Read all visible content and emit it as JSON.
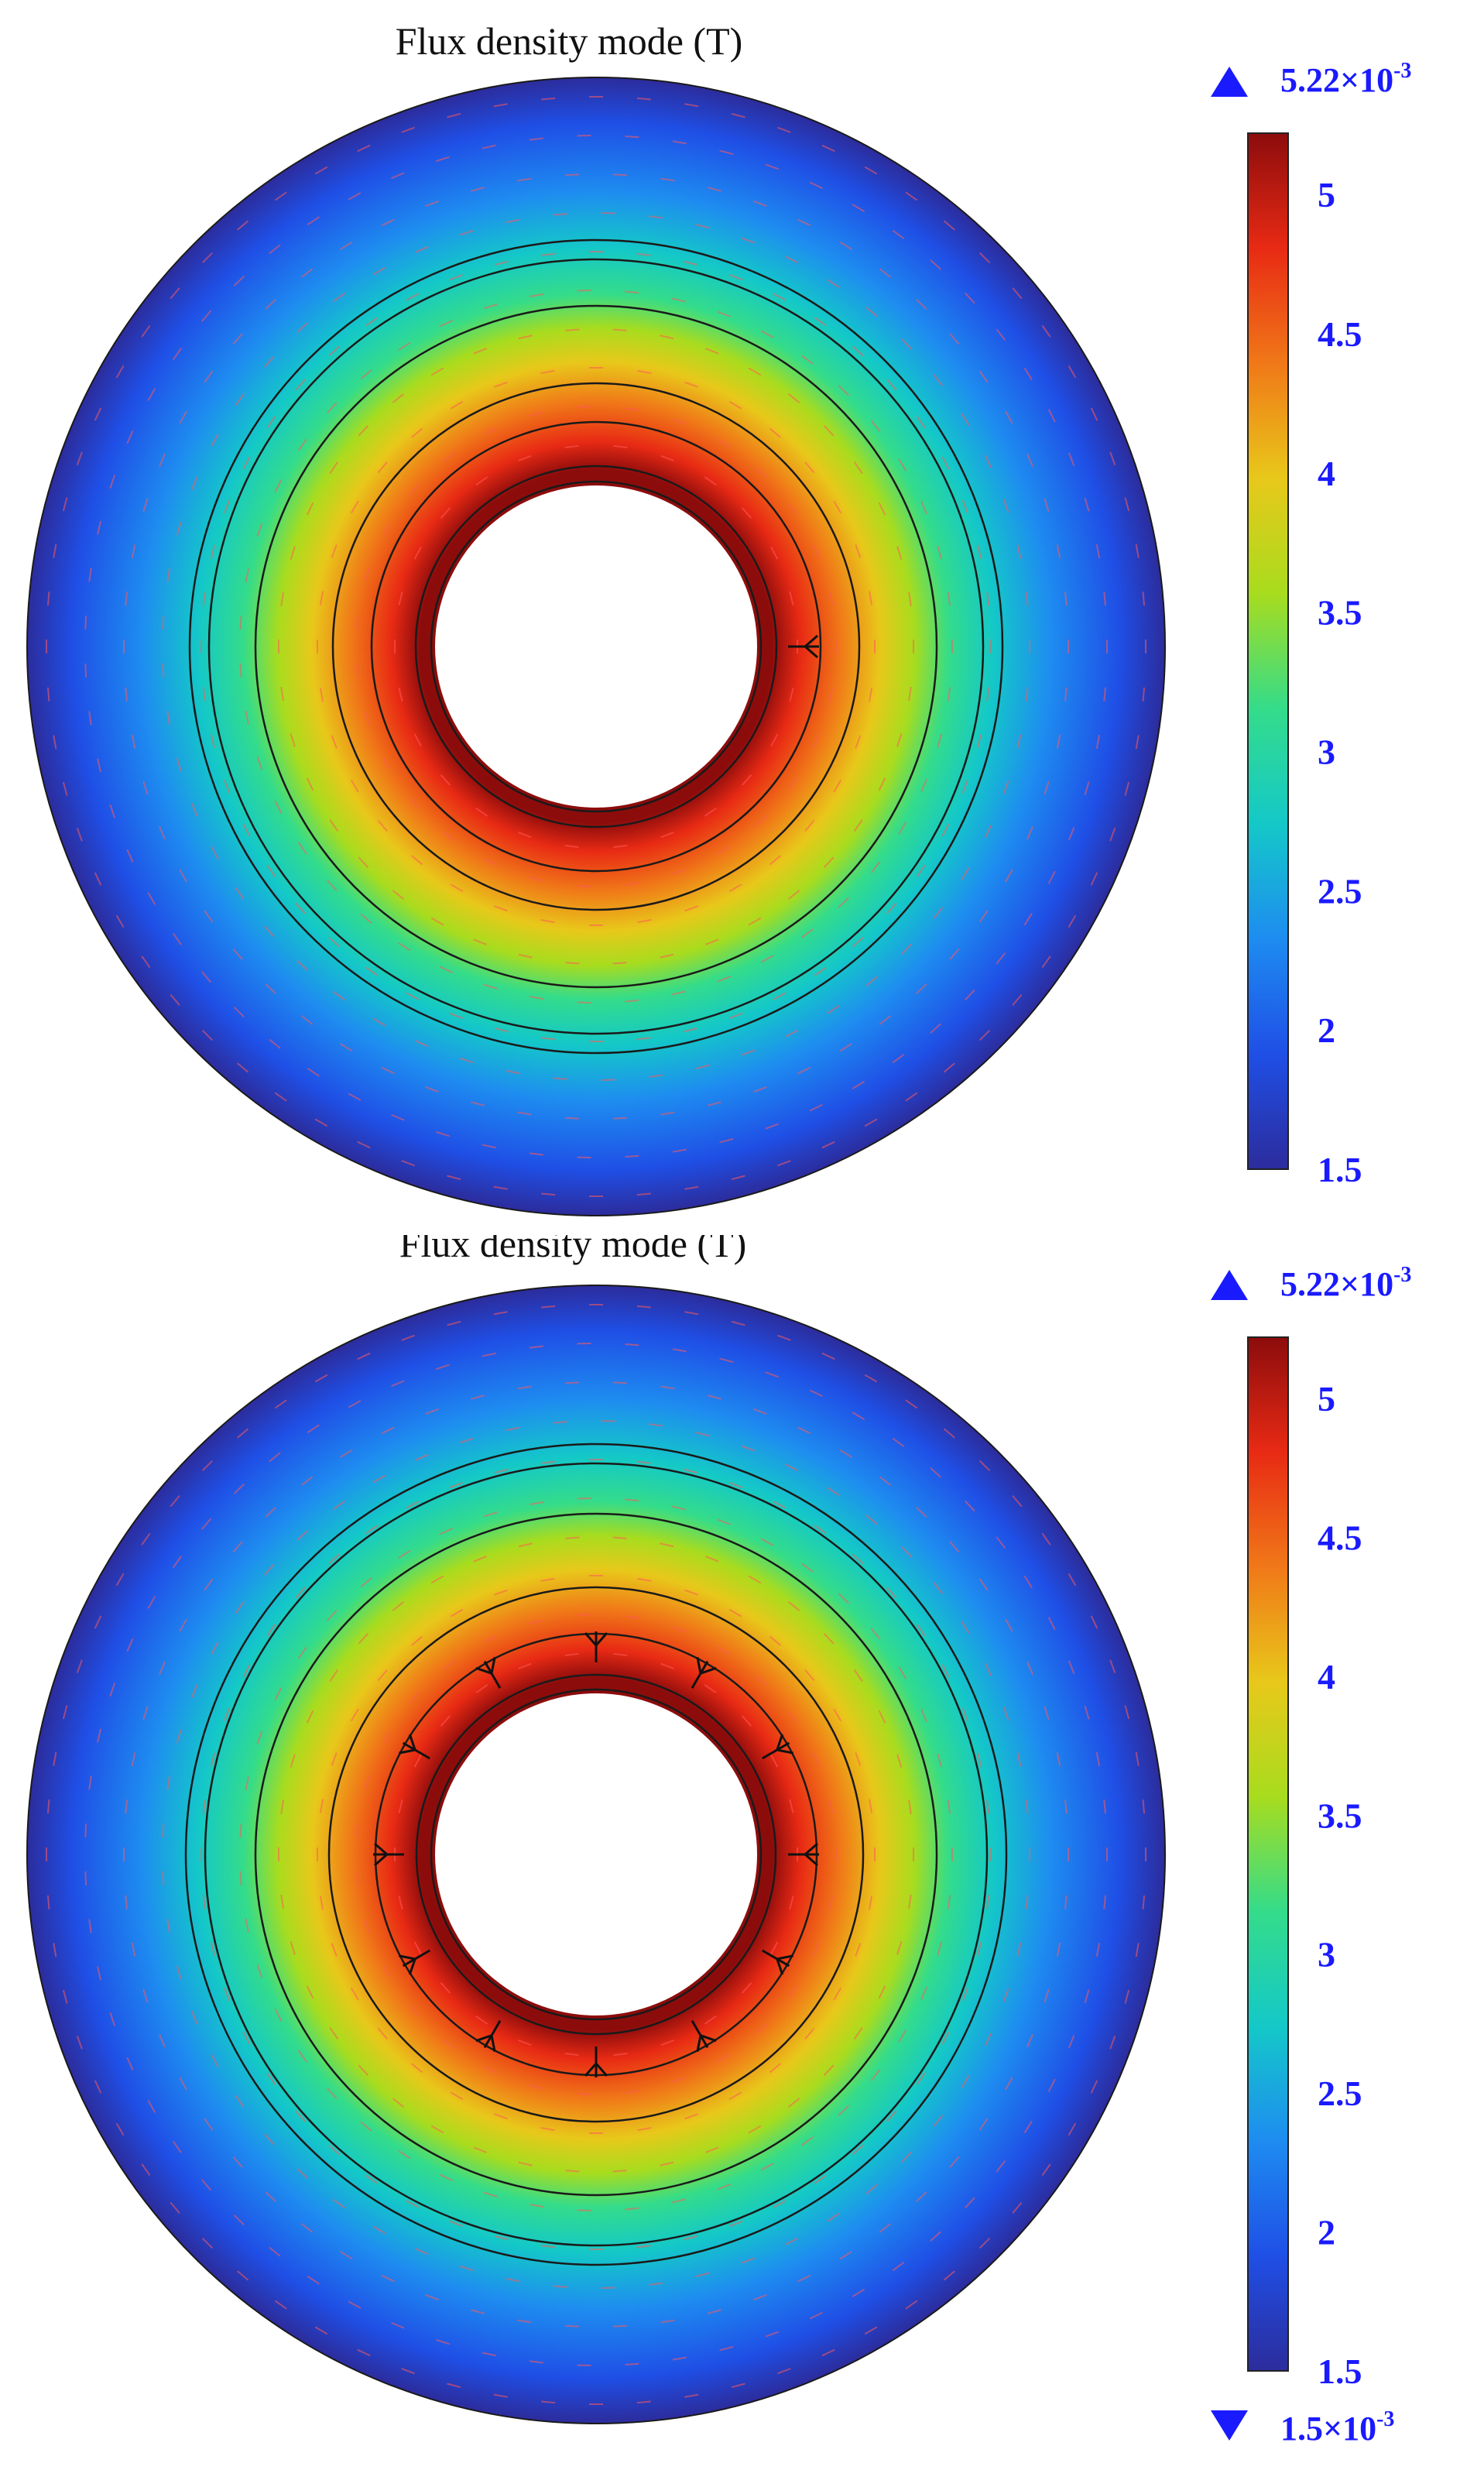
{
  "colors": {
    "colormap": [
      "#2c2c9c",
      "#1f4fe6",
      "#1e8cf0",
      "#14c8c8",
      "#34dc8a",
      "#a8dc1e",
      "#e8c81a",
      "#f07818",
      "#e82a14",
      "#8c0c0c"
    ],
    "contour_line": "#1a1a1a",
    "arrow": "#ff5a5a",
    "label_blue": "#1a1aff"
  },
  "chart_data": [
    {
      "type": "heatmap",
      "title": "Flux density mode (T)",
      "geometry": "annulus",
      "colorbar": {
        "range": [
          1.5,
          5.22
        ],
        "ticks": [
          1.5,
          2,
          2.5,
          3,
          3.5,
          4,
          4.5,
          5
        ],
        "tick_labels": [
          "1.5",
          "2",
          "2.5",
          "3",
          "3.5",
          "4",
          "4.5",
          "5"
        ],
        "max_marker": {
          "mantissa": "5.22×10",
          "exponent": "-3"
        },
        "min_marker": null
      },
      "orientation_markers": 1
    },
    {
      "type": "heatmap",
      "title": "Flux density mode (T)",
      "geometry": "annulus",
      "colorbar": {
        "range": [
          1.5,
          5.22
        ],
        "ticks": [
          1.5,
          2,
          2.5,
          3,
          3.5,
          4,
          4.5,
          5
        ],
        "tick_labels": [
          "1.5",
          "2",
          "2.5",
          "3",
          "3.5",
          "4",
          "4.5",
          "5"
        ],
        "max_marker": {
          "mantissa": "5.22×10",
          "exponent": "-3"
        },
        "min_marker": {
          "mantissa": "1.5×10",
          "exponent": "-3"
        }
      },
      "orientation_markers": 12
    }
  ]
}
